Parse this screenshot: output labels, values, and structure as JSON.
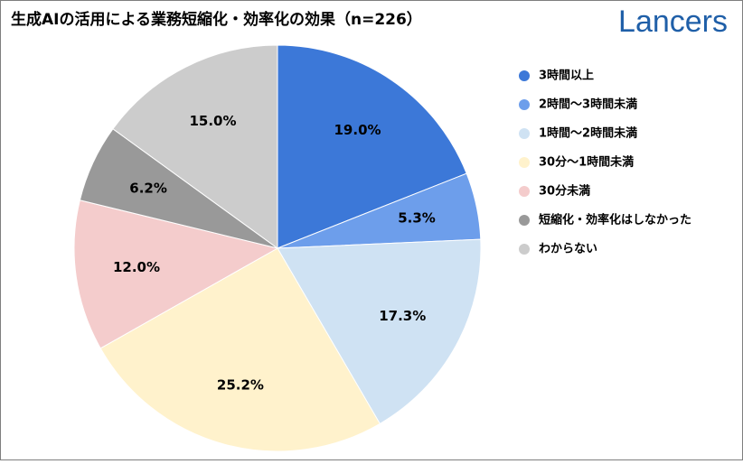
{
  "chart_data": {
    "type": "pie",
    "title": "生成AIの活用による業務短縮化・効率化の効果（n=226）",
    "logo": "Lancers",
    "categories": [
      "3時間以上",
      "2時間〜3時間未満",
      "1時間〜2時間未満",
      "30分〜1時間未満",
      "30分未満",
      "短縮化・効率化はしなかった",
      "わからない"
    ],
    "values": [
      19.0,
      5.3,
      17.3,
      25.2,
      12.0,
      6.2,
      15.0
    ],
    "value_labels": [
      "19.0%",
      "5.3%",
      "17.3%",
      "25.2%",
      "12.0%",
      "6.2%",
      "15.0%"
    ],
    "colors": [
      "#3c78d8",
      "#6d9eeb",
      "#cfe2f3",
      "#fff2cc",
      "#f4cccc",
      "#999999",
      "#cccccc"
    ],
    "legend": "right"
  }
}
